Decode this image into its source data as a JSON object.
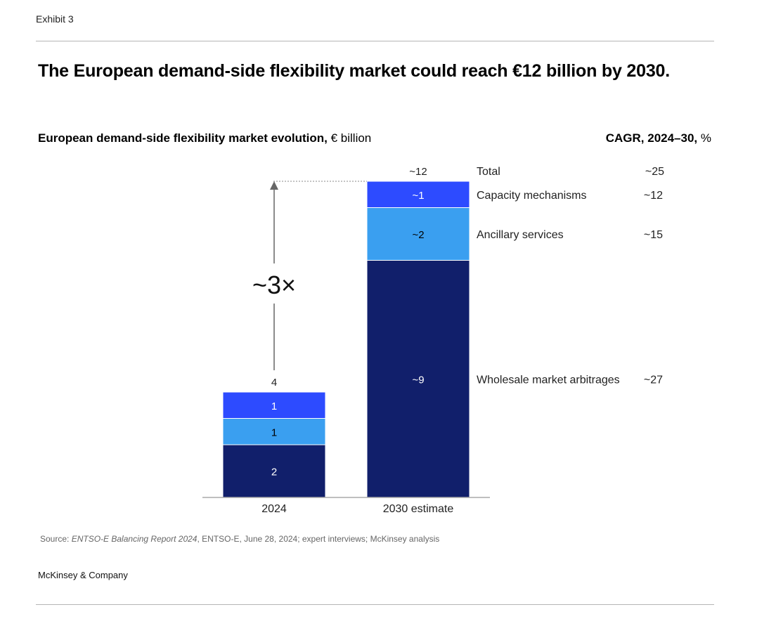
{
  "exhibit": "Exhibit 3",
  "title": "The European demand-side flexibility market could reach €12 billion by 2030.",
  "subtitle_bold": "European demand-side flexibility market evolution,",
  "subtitle_unit": "€ billion",
  "cagr_bold": "CAGR, 2024–30,",
  "cagr_unit": "%",
  "source_prefix": "Source: ",
  "source_italic": "ENTSO-E Balancing Report 2024",
  "source_rest": ", ENTSO-E, June 28, 2024; expert interviews; McKinsey analysis",
  "brand": "McKinsey & Company",
  "chart_data": {
    "type": "bar",
    "stacked": true,
    "categories": [
      "2024",
      "2030 estimate"
    ],
    "series": [
      {
        "name": "Wholesale market arbitrages",
        "values": [
          2,
          9
        ],
        "labels": [
          "2",
          "~9"
        ],
        "color": "#111f6b",
        "cagr": "~27"
      },
      {
        "name": "Ancillary services",
        "values": [
          1,
          2
        ],
        "labels": [
          "1",
          "~2"
        ],
        "color": "#3a9ff0",
        "cagr": "~15"
      },
      {
        "name": "Capacity mechanisms",
        "values": [
          1,
          1
        ],
        "labels": [
          "1",
          "~1"
        ],
        "color": "#2d4bff",
        "cagr": "~12"
      }
    ],
    "totals": {
      "name": "Total",
      "labels": [
        "4",
        "~12"
      ],
      "cagr": "~25"
    },
    "annotation": "~3×",
    "ylim": [
      0,
      12
    ],
    "grid": false,
    "legend": "right"
  }
}
